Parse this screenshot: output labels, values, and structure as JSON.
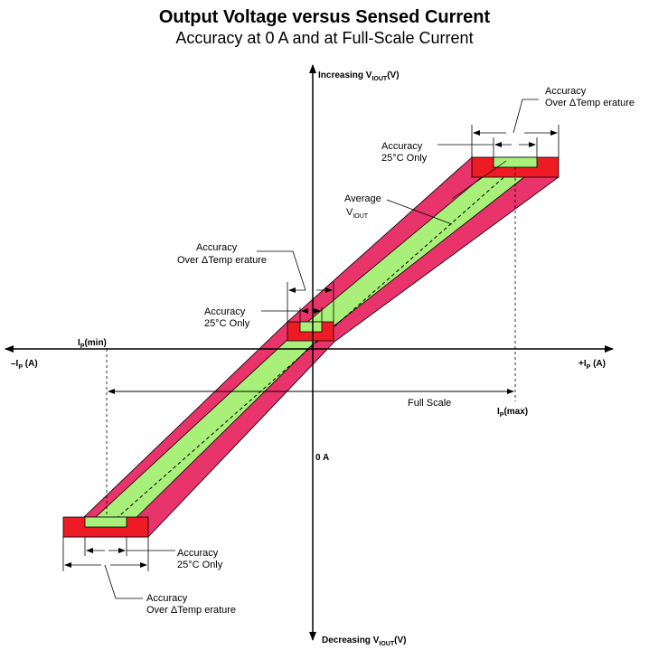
{
  "title": "Output Voltage versus Sensed Current",
  "subtitle": "Accuracy at 0 A and at Full-Scale Current",
  "axes": {
    "y_top": {
      "prefix": "Increasing V",
      "sub": "IOUT",
      "suffix": "(V)"
    },
    "y_bottom": {
      "prefix": "Decreasing V",
      "sub": "IOUT",
      "suffix": "(V)"
    },
    "x_left": {
      "prefix": "–I",
      "sub": "P",
      "suffix": " (A)"
    },
    "x_right": {
      "prefix": "+I",
      "sub": "P",
      "suffix": " (A)"
    },
    "origin_label": "0 A"
  },
  "markers": {
    "ip_min": {
      "prefix": "I",
      "sub": "P",
      "suffix": "(min)"
    },
    "ip_max": {
      "prefix": "I",
      "sub": "P",
      "suffix": "(max)"
    },
    "full_scale": "Full Scale"
  },
  "callouts": {
    "top_over_temp": [
      "Accuracy",
      "Over ΔTemp erature"
    ],
    "top_25c": [
      "Accuracy",
      "25°C Only"
    ],
    "average": {
      "line1": "Average",
      "prefix": "V",
      "sub": "IOUT"
    },
    "mid_over_temp": [
      "Accuracy",
      "Over ΔTemp erature"
    ],
    "mid_25c": [
      "Accuracy",
      "25°C Only"
    ],
    "bottom_25c": [
      "Accuracy",
      "25°C Only"
    ],
    "bottom_over_temp": [
      "Accuracy",
      "Over ΔTemp erature"
    ]
  },
  "colors": {
    "over_temp_band": "#e8336b",
    "room_temp_band": "#a8f07a",
    "error_box": "#ee1b24",
    "axis": "#000000"
  }
}
